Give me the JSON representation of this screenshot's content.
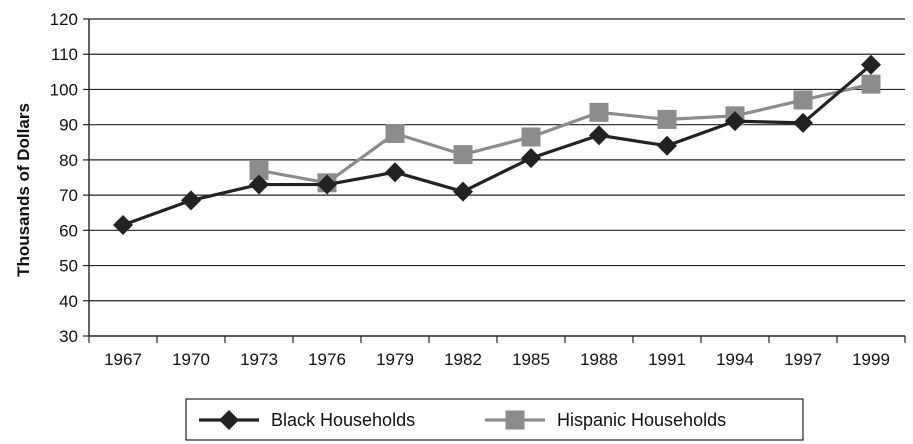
{
  "chart_data": {
    "type": "line",
    "title": "",
    "xlabel": "",
    "ylabel": "Thousands of Dollars",
    "ylim": [
      30,
      120
    ],
    "yticks": [
      30,
      40,
      50,
      60,
      70,
      80,
      90,
      100,
      110,
      120
    ],
    "categories": [
      "1967",
      "1970",
      "1973",
      "1976",
      "1979",
      "1982",
      "1985",
      "1988",
      "1991",
      "1994",
      "1997",
      "1999"
    ],
    "grid": "horizontal",
    "legend_position": "bottom",
    "series": [
      {
        "name": "Black Households",
        "color": "#222222",
        "marker": "diamond",
        "values": [
          61.5,
          68.5,
          73,
          73,
          76.5,
          71,
          80.5,
          87,
          84,
          91,
          90.5,
          107
        ]
      },
      {
        "name": "Hispanic Households",
        "color": "#8c8c8c",
        "marker": "square",
        "values": [
          null,
          null,
          77,
          73.5,
          87.5,
          81.5,
          86.5,
          93.5,
          91.5,
          92.5,
          97,
          101.5
        ]
      }
    ]
  }
}
